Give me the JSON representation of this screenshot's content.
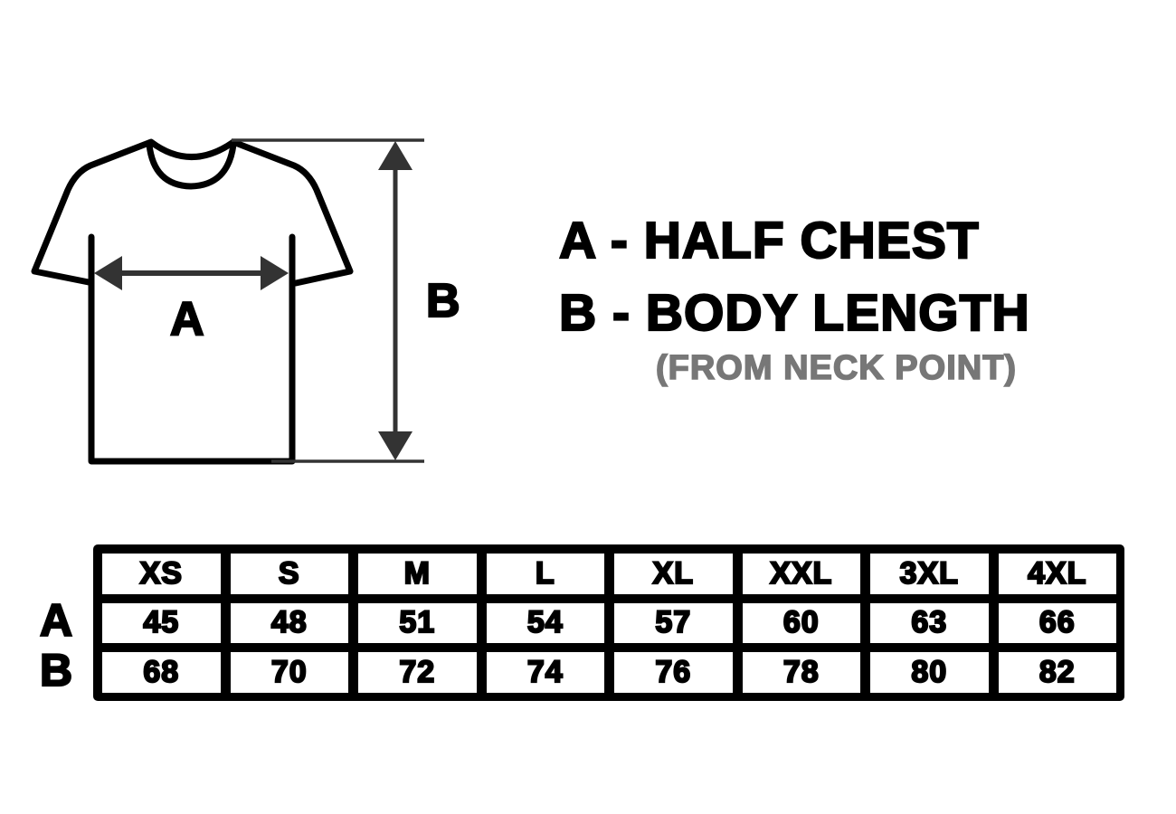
{
  "diagram": {
    "label_a": "A",
    "label_b": "B"
  },
  "legend": {
    "a": "A - HALF CHEST",
    "b": "B - BODY LENGTH",
    "note": "(FROM NECK POINT)"
  },
  "table": {
    "sizes": [
      "XS",
      "S",
      "M",
      "L",
      "XL",
      "XXL",
      "3XL",
      "4XL"
    ],
    "rows": [
      {
        "label": "A",
        "values": [
          "45",
          "48",
          "51",
          "54",
          "57",
          "60",
          "63",
          "66"
        ]
      },
      {
        "label": "B",
        "values": [
          "68",
          "70",
          "72",
          "74",
          "76",
          "78",
          "80",
          "82"
        ]
      }
    ]
  },
  "colors": {
    "outline": "#000000",
    "arrow": "#333333",
    "note": "#777777"
  }
}
